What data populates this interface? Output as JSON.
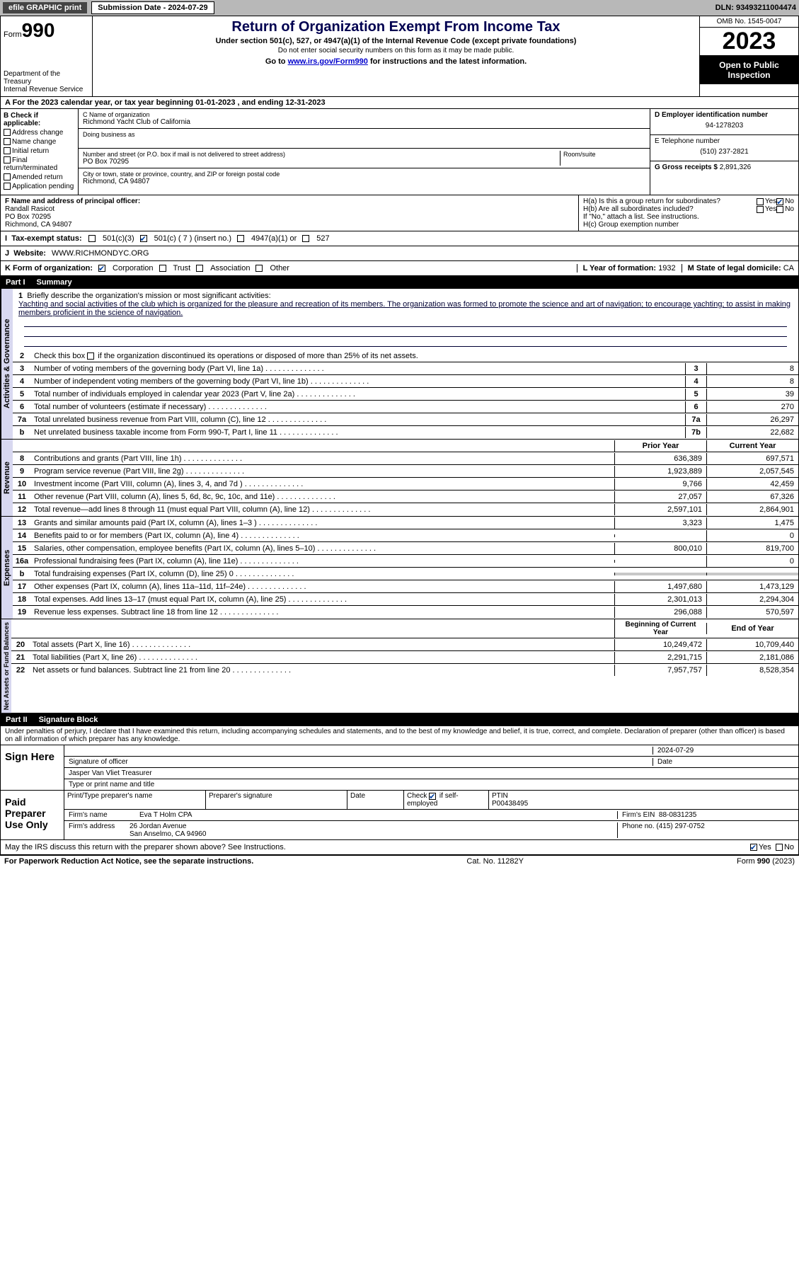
{
  "topbar": {
    "efile": "efile GRAPHIC print",
    "submission": "Submission Date - 2024-07-29",
    "dln": "DLN: 93493211004474"
  },
  "header": {
    "form_label": "Form",
    "form_number": "990",
    "dept": "Department of the Treasury",
    "irs": "Internal Revenue Service",
    "title": "Return of Organization Exempt From Income Tax",
    "subtitle": "Under section 501(c), 527, or 4947(a)(1) of the Internal Revenue Code (except private foundations)",
    "note1": "Do not enter social security numbers on this form as it may be made public.",
    "note2_pre": "Go to ",
    "note2_link": "www.irs.gov/Form990",
    "note2_post": " for instructions and the latest information.",
    "omb": "OMB No. 1545-0047",
    "year": "2023",
    "open": "Open to Public Inspection"
  },
  "section_a": "A For the 2023 calendar year, or tax year beginning 01-01-2023   , and ending 12-31-2023",
  "box_b": {
    "title": "B Check if applicable:",
    "items": [
      "Address change",
      "Name change",
      "Initial return",
      "Final return/terminated",
      "Amended return",
      "Application pending"
    ]
  },
  "box_c": {
    "name_label": "C Name of organization",
    "name": "Richmond Yacht Club of California",
    "dba_label": "Doing business as",
    "addr_label": "Number and street (or P.O. box if mail is not delivered to street address)",
    "room_label": "Room/suite",
    "addr": "PO Box 70295",
    "city_label": "City or town, state or province, country, and ZIP or foreign postal code",
    "city": "Richmond, CA  94807"
  },
  "box_d": {
    "label": "D Employer identification number",
    "value": "94-1278203"
  },
  "box_e": {
    "label": "E Telephone number",
    "value": "(510) 237-2821"
  },
  "box_g": {
    "label": "G Gross receipts $",
    "value": "2,891,326"
  },
  "box_f": {
    "label": "F  Name and address of principal officer:",
    "name": "Randall Rasicot",
    "addr1": "PO Box 70295",
    "addr2": "Richmond, CA  94807"
  },
  "box_h": {
    "ha": "H(a)  Is this a group return for subordinates?",
    "hb": "H(b)  Are all subordinates included?",
    "hb_note": "If \"No,\" attach a list. See instructions.",
    "hc": "H(c)  Group exemption number"
  },
  "box_i": {
    "label": "Tax-exempt status:",
    "opt1": "501(c)(3)",
    "opt2": "501(c) ( 7 ) (insert no.)",
    "opt3": "4947(a)(1) or",
    "opt4": "527"
  },
  "box_j": {
    "label": "Website:",
    "value": "WWW.RICHMONDYC.ORG"
  },
  "box_k": {
    "label": "K Form of organization:",
    "corp": "Corporation",
    "trust": "Trust",
    "assoc": "Association",
    "other": "Other"
  },
  "box_l": {
    "label": "L Year of formation:",
    "value": "1932"
  },
  "box_m": {
    "label": "M State of legal domicile:",
    "value": "CA"
  },
  "part1": {
    "num": "Part I",
    "title": "Summary"
  },
  "summary": {
    "line1_label": "Briefly describe the organization's mission or most significant activities:",
    "line1_text": "Yachting and social activities of the club which is organized for the pleasure and recreation of its members. The organization was formed to promote the science and art of navigation; to encourage yachting; to assist in making members proficient in the science of navigation.",
    "line2": "Check this box      if the organization discontinued its operations or disposed of more than 25% of its net assets.",
    "lines_ag": [
      {
        "n": "3",
        "t": "Number of voting members of the governing body (Part VI, line 1a)",
        "box": "3",
        "v": "8"
      },
      {
        "n": "4",
        "t": "Number of independent voting members of the governing body (Part VI, line 1b)",
        "box": "4",
        "v": "8"
      },
      {
        "n": "5",
        "t": "Total number of individuals employed in calendar year 2023 (Part V, line 2a)",
        "box": "5",
        "v": "39"
      },
      {
        "n": "6",
        "t": "Total number of volunteers (estimate if necessary)",
        "box": "6",
        "v": "270"
      },
      {
        "n": "7a",
        "t": "Total unrelated business revenue from Part VIII, column (C), line 12",
        "box": "7a",
        "v": "26,297"
      },
      {
        "n": "b",
        "t": "Net unrelated business taxable income from Form 990-T, Part I, line 11",
        "box": "7b",
        "v": "22,682"
      }
    ],
    "col_prior": "Prior Year",
    "col_current": "Current Year",
    "revenue": [
      {
        "n": "8",
        "t": "Contributions and grants (Part VIII, line 1h)",
        "p": "636,389",
        "c": "697,571"
      },
      {
        "n": "9",
        "t": "Program service revenue (Part VIII, line 2g)",
        "p": "1,923,889",
        "c": "2,057,545"
      },
      {
        "n": "10",
        "t": "Investment income (Part VIII, column (A), lines 3, 4, and 7d )",
        "p": "9,766",
        "c": "42,459"
      },
      {
        "n": "11",
        "t": "Other revenue (Part VIII, column (A), lines 5, 6d, 8c, 9c, 10c, and 11e)",
        "p": "27,057",
        "c": "67,326"
      },
      {
        "n": "12",
        "t": "Total revenue—add lines 8 through 11 (must equal Part VIII, column (A), line 12)",
        "p": "2,597,101",
        "c": "2,864,901"
      }
    ],
    "expenses": [
      {
        "n": "13",
        "t": "Grants and similar amounts paid (Part IX, column (A), lines 1–3 )",
        "p": "3,323",
        "c": "1,475"
      },
      {
        "n": "14",
        "t": "Benefits paid to or for members (Part IX, column (A), line 4)",
        "p": "",
        "c": "0"
      },
      {
        "n": "15",
        "t": "Salaries, other compensation, employee benefits (Part IX, column (A), lines 5–10)",
        "p": "800,010",
        "c": "819,700"
      },
      {
        "n": "16a",
        "t": "Professional fundraising fees (Part IX, column (A), line 11e)",
        "p": "",
        "c": "0"
      },
      {
        "n": "b",
        "t": "Total fundraising expenses (Part IX, column (D), line 25) 0",
        "p": "shaded",
        "c": "shaded"
      },
      {
        "n": "17",
        "t": "Other expenses (Part IX, column (A), lines 11a–11d, 11f–24e)",
        "p": "1,497,680",
        "c": "1,473,129"
      },
      {
        "n": "18",
        "t": "Total expenses. Add lines 13–17 (must equal Part IX, column (A), line 25)",
        "p": "2,301,013",
        "c": "2,294,304"
      },
      {
        "n": "19",
        "t": "Revenue less expenses. Subtract line 18 from line 12",
        "p": "296,088",
        "c": "570,597"
      }
    ],
    "col_begin": "Beginning of Current Year",
    "col_end": "End of Year",
    "netassets": [
      {
        "n": "20",
        "t": "Total assets (Part X, line 16)",
        "p": "10,249,472",
        "c": "10,709,440"
      },
      {
        "n": "21",
        "t": "Total liabilities (Part X, line 26)",
        "p": "2,291,715",
        "c": "2,181,086"
      },
      {
        "n": "22",
        "t": "Net assets or fund balances. Subtract line 21 from line 20",
        "p": "7,957,757",
        "c": "8,528,354"
      }
    ]
  },
  "vert": {
    "ag": "Activities & Governance",
    "rev": "Revenue",
    "exp": "Expenses",
    "na": "Net Assets or Fund Balances"
  },
  "part2": {
    "num": "Part II",
    "title": "Signature Block"
  },
  "penalty": "Under penalties of perjury, I declare that I have examined this return, including accompanying schedules and statements, and to the best of my knowledge and belief, it is true, correct, and complete. Declaration of preparer (other than officer) is based on all information of which preparer has any knowledge.",
  "sign": {
    "left": "Sign Here",
    "sig_label": "Signature of officer",
    "date": "2024-07-29",
    "date_label": "Date",
    "name": "Jasper Van Vliet  Treasurer",
    "name_label": "Type or print name and title"
  },
  "prep": {
    "left": "Paid Preparer Use Only",
    "h1": "Print/Type preparer's name",
    "h2": "Preparer's signature",
    "h3": "Date",
    "h4_a": "Check",
    "h4_b": "if self-employed",
    "h5": "PTIN",
    "ptin": "P00438495",
    "firm_label": "Firm's name",
    "firm": "Eva T Holm CPA",
    "ein_label": "Firm's EIN",
    "ein": "88-0831235",
    "addr_label": "Firm's address",
    "addr1": "26 Jordan Avenue",
    "addr2": "San Anselmo, CA  94960",
    "phone_label": "Phone no.",
    "phone": "(415) 297-0752"
  },
  "discuss": "May the IRS discuss this return with the preparer shown above? See Instructions.",
  "footer": {
    "left": "For Paperwork Reduction Act Notice, see the separate instructions.",
    "mid": "Cat. No. 11282Y",
    "right": "Form 990 (2023)"
  },
  "yn": {
    "yes": "Yes",
    "no": "No"
  }
}
